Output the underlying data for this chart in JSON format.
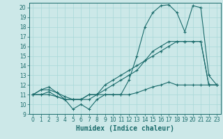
{
  "xlabel": "Humidex (Indice chaleur)",
  "bg_color": "#cce8e8",
  "line_color": "#1a6b6b",
  "grid_color": "#a8d8d8",
  "marker": "+",
  "xlim": [
    -0.5,
    23.5
  ],
  "ylim": [
    9,
    20.5
  ],
  "xticks": [
    0,
    1,
    2,
    3,
    4,
    5,
    6,
    7,
    8,
    9,
    10,
    11,
    12,
    13,
    14,
    15,
    16,
    17,
    18,
    19,
    20,
    21,
    22,
    23
  ],
  "yticks": [
    9,
    10,
    11,
    12,
    13,
    14,
    15,
    16,
    17,
    18,
    19,
    20
  ],
  "series": [
    [
      11,
      11,
      11.3,
      10.8,
      10.5,
      9.5,
      10,
      9.5,
      10.5,
      11,
      11,
      11,
      12.5,
      15,
      18,
      19.5,
      20.2,
      20.3,
      19.5,
      17.5,
      20.2,
      20,
      13,
      12
    ],
    [
      11,
      11,
      11,
      10.8,
      10.5,
      10.5,
      10.5,
      11,
      11,
      11,
      11,
      11,
      11,
      11.2,
      11.5,
      11.8,
      12,
      12.3,
      12,
      12,
      12,
      12,
      12,
      12
    ],
    [
      11,
      11.5,
      11.8,
      11.2,
      10.5,
      10.5,
      10.5,
      10.5,
      11,
      12,
      12.5,
      13,
      13.5,
      14,
      14.5,
      15,
      15.5,
      16,
      16.5,
      16.5,
      16.5,
      16.5,
      12,
      12
    ],
    [
      11,
      11.5,
      11.5,
      11.2,
      10.8,
      10.5,
      10.5,
      11,
      11,
      11.5,
      12,
      12.5,
      13,
      13.5,
      14.5,
      15.5,
      16,
      16.5,
      16.5,
      16.5,
      16.5,
      16.5,
      12,
      12
    ]
  ],
  "tick_fontsize": 5.5,
  "xlabel_fontsize": 7
}
